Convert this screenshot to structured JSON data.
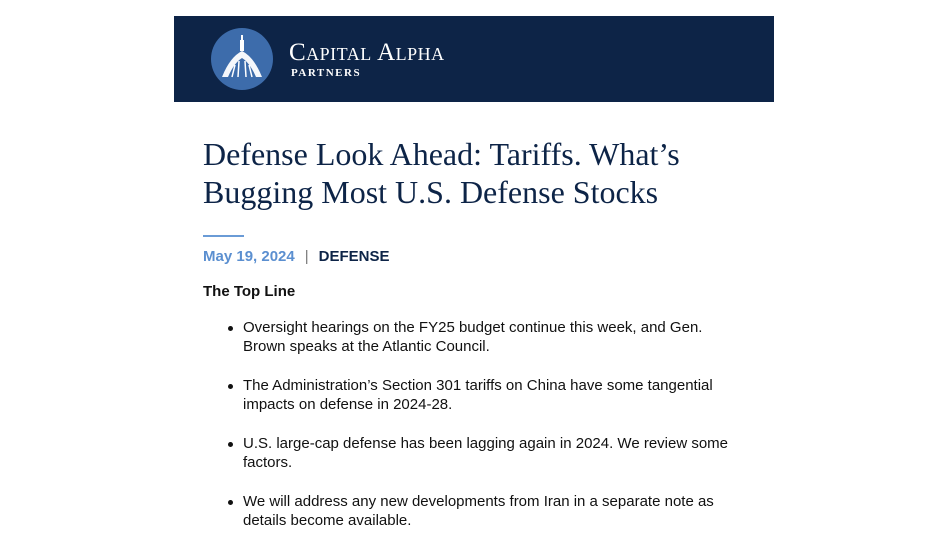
{
  "header": {
    "brand": "Capital Alpha",
    "subbrand": "PARTNERS"
  },
  "article": {
    "title": "Defense Look Ahead: Tariffs. What’s Bugging Most U.S. Defense Stocks",
    "date": "May 19, 2024",
    "separator": "|",
    "category": "DEFENSE",
    "section_heading": "The Top Line",
    "bullets": [
      "Oversight hearings on the FY25 budget continue this week, and Gen. Brown speaks at the Atlantic Council.",
      "The Administration’s Section 301 tariffs on China have some tangential impacts on defense in 2024-28.",
      "U.S. large-cap defense has been lagging again in 2024. We review some factors.",
      "We will address any new developments from Iran in a separate note as details become available."
    ]
  }
}
